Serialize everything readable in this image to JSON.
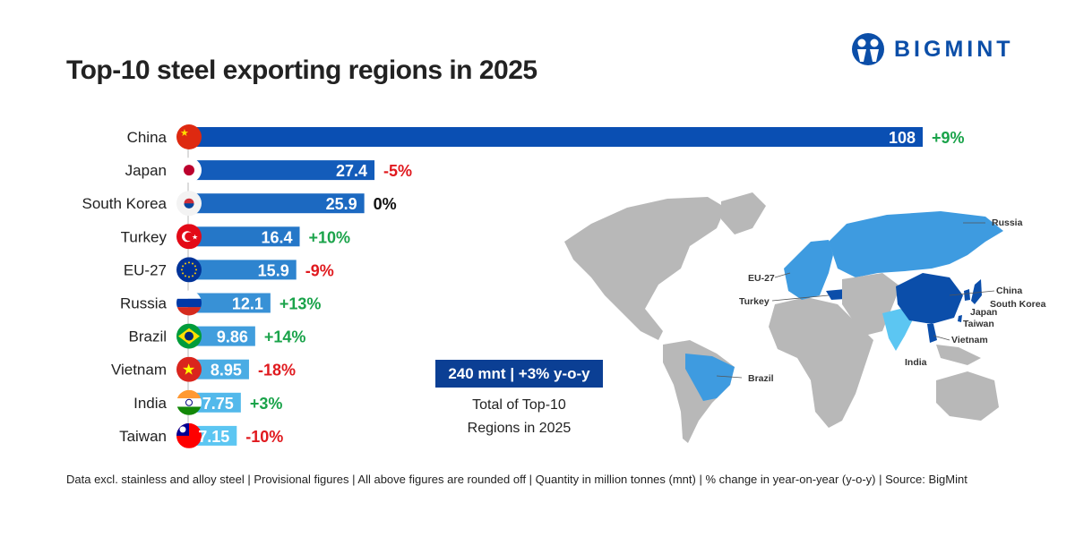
{
  "title": "Top-10 steel exporting regions in 2025",
  "logo": {
    "text": "BIGMINT"
  },
  "colors": {
    "dark_bar": "#0a4fb3",
    "light_bar": "#5cc6f2",
    "positive": "#1aa34a",
    "negative": "#e0191e",
    "neutral": "#111111",
    "map_highlight_dark": "#0b4eaa",
    "map_highlight_light": "#3e9be0",
    "map_base": "#b8b8b8"
  },
  "chart_data": {
    "type": "bar",
    "orientation": "horizontal",
    "title": "Top-10 steel exporting regions in 2025",
    "categories": [
      "China",
      "Japan",
      "South Korea",
      "Turkey",
      "EU-27",
      "Russia",
      "Brazil",
      "Vietnam",
      "India",
      "Taiwan"
    ],
    "values": [
      108,
      27.4,
      25.9,
      16.4,
      15.9,
      12.1,
      9.86,
      8.95,
      7.75,
      7.15
    ],
    "value_labels": [
      "108",
      "27.4",
      "25.9",
      "16.4",
      "15.9",
      "12.1",
      "9.86",
      "8.95",
      "7.75",
      "7.15"
    ],
    "yoy_change": [
      "+9%",
      "-5%",
      "0%",
      "+10%",
      "-9%",
      "+13%",
      "+14%",
      "-18%",
      "+3%",
      "-10%"
    ],
    "flags": [
      "china-flag",
      "japan-flag",
      "south-korea-flag",
      "turkey-flag",
      "eu-flag",
      "russia-flag",
      "brazil-flag",
      "vietnam-flag",
      "india-flag",
      "taiwan-flag"
    ],
    "unit": "mnt",
    "grid": false
  },
  "summary": {
    "headline": "240 mnt | +3% y-o-y",
    "line1": "Total of Top-10",
    "line2": "Regions in 2025"
  },
  "map_labels": [
    "Russia",
    "EU-27",
    "China",
    "Turkey",
    "South Korea",
    "Japan",
    "Taiwan",
    "Vietnam",
    "India",
    "Brazil"
  ],
  "footer": "Data excl. stainless and alloy steel | Provisional figures | All above figures are rounded off | Quantity in million tonnes (mnt) | % change in year-on-year (y-o-y) | Source: BigMint"
}
